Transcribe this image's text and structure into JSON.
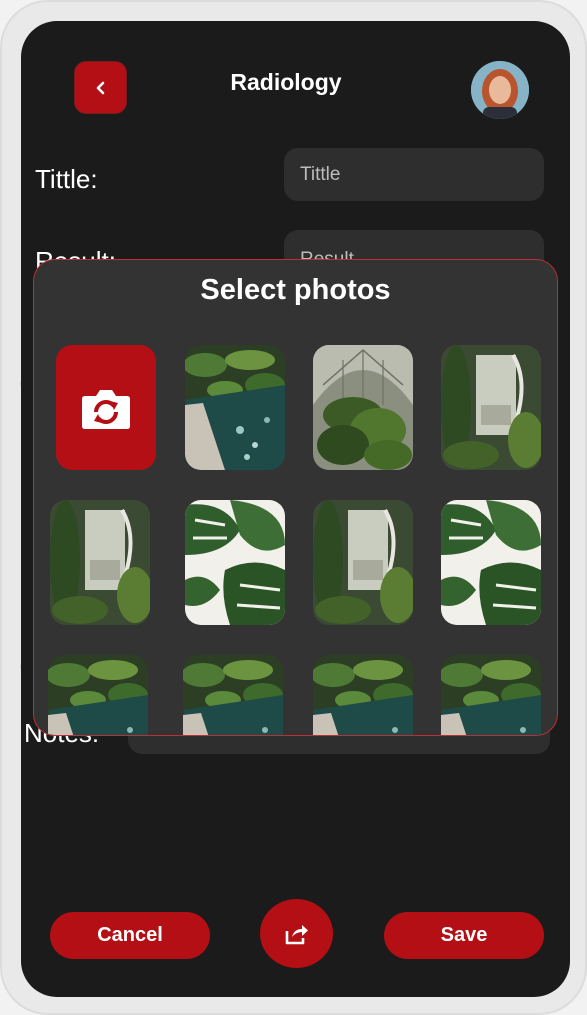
{
  "header": {
    "title": "Radiology"
  },
  "form": {
    "title_label": "Tittle:",
    "title_placeholder": "Tittle",
    "result_label": "Result:",
    "result_placeholder": "Result",
    "notes_label": "Notes:"
  },
  "modal": {
    "title": "Select photos",
    "photos": [
      "pool-plants",
      "greenhouse-dome",
      "white-staircase-plants",
      "white-staircase-plants",
      "monstera-leaves",
      "white-staircase-plants",
      "monstera-leaves",
      "pool-plants",
      "pool-plants",
      "pool-plants",
      "pool-plants"
    ]
  },
  "actions": {
    "cancel_label": "Cancel",
    "save_label": "Save"
  },
  "colors": {
    "accent": "#b30f14",
    "background": "#1b1b1b",
    "surface": "#2e2e2e",
    "modal": "#333333",
    "modal_border": "#b8313a"
  },
  "icons": {
    "back": "chevron-left-icon",
    "camera": "camera-icon",
    "share": "share-icon"
  }
}
